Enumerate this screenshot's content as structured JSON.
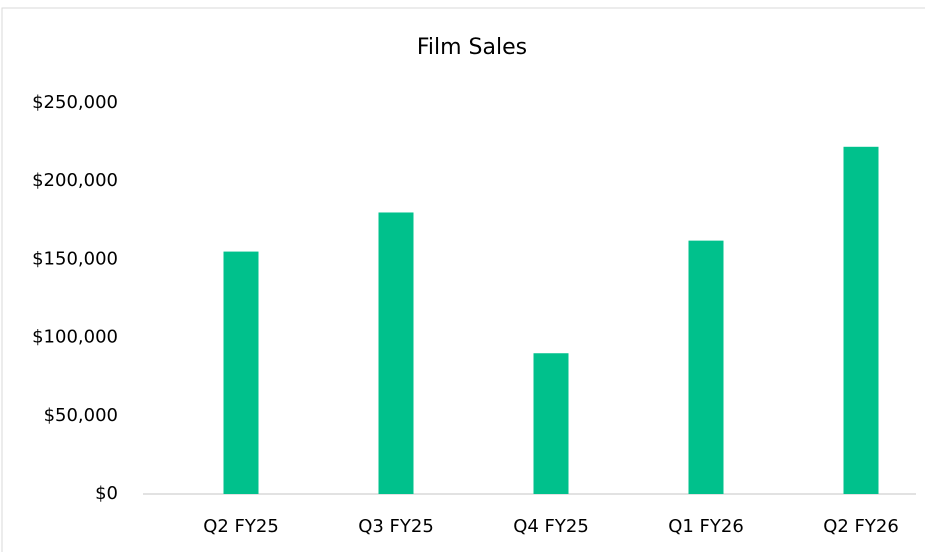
{
  "chart_data": {
    "type": "bar",
    "title": "Film Sales",
    "categories": [
      "Q2 FY25",
      "Q3 FY25",
      "Q4 FY25",
      "Q1 FY26",
      "Q2 FY26"
    ],
    "values": [
      155000,
      180000,
      90000,
      162000,
      222000
    ],
    "color": "#00c18c",
    "ylim": [
      0,
      250000
    ],
    "yticks": [
      {
        "value": 0,
        "label": "$0"
      },
      {
        "value": 50000,
        "label": "$50,000"
      },
      {
        "value": 100000,
        "label": "$100,000"
      },
      {
        "value": 150000,
        "label": "$150,000"
      },
      {
        "value": 200000,
        "label": "$200,000"
      },
      {
        "value": 250000,
        "label": "$250,000"
      }
    ],
    "grid": false
  }
}
